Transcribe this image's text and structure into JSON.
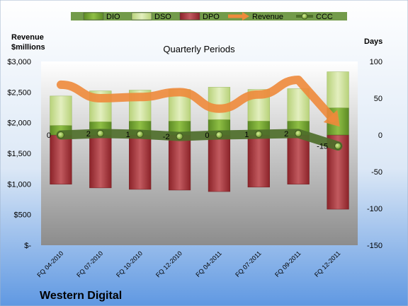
{
  "chart_data": {
    "type": "bar",
    "title": "Quarterly Periods",
    "brand": "Western Digital",
    "y_left_label_line1": "Revenue",
    "y_left_label_line2": "$millions",
    "y_right_label": "Days",
    "y_left": {
      "ylim": [
        0,
        3000
      ],
      "ticks": [
        0,
        500,
        1000,
        1500,
        2000,
        2500,
        3000
      ],
      "tick_labels": [
        "$-",
        "$500",
        "$1,000",
        "$1,500",
        "$2,000",
        "$2,500",
        "$3,000"
      ]
    },
    "y_right": {
      "ylim": [
        -150,
        100
      ],
      "ticks": [
        -150,
        -100,
        -50,
        0,
        50,
        100
      ],
      "tick_labels": [
        "-150",
        "-100",
        "-50",
        "0",
        "50",
        "100"
      ]
    },
    "categories": [
      "FQ 04-2010",
      "FQ 07-2010",
      "FQ 10-2010",
      "FQ 12-2010",
      "FQ 04-2011",
      "FQ 07-2011",
      "FQ 09-2011",
      "FQ 12-2011"
    ],
    "legend": [
      "DIO",
      "DSO",
      "DPO",
      "Revenue",
      "CCC"
    ],
    "series": [
      {
        "name": "DIO",
        "axis": "days",
        "values": [
          13,
          18,
          19,
          19,
          21,
          19,
          19,
          37
        ]
      },
      {
        "name": "DSO",
        "axis": "days",
        "values": [
          40,
          42,
          42,
          43,
          44,
          43,
          44,
          49
        ]
      },
      {
        "name": "DPO",
        "axis": "days",
        "values": [
          -67,
          -72,
          -74,
          -75,
          -77,
          -71,
          -67,
          -101
        ]
      },
      {
        "name": "Revenue",
        "axis": "revenue",
        "values": [
          2620,
          2400,
          2420,
          2500,
          2230,
          2460,
          2700,
          1970
        ]
      },
      {
        "name": "CCC",
        "axis": "days",
        "values": [
          0,
          2,
          1,
          -2,
          0,
          1,
          2,
          -15
        ],
        "labels": [
          "0",
          "2",
          "1",
          "-2",
          "0",
          "1",
          "2",
          "-15"
        ]
      }
    ],
    "colors": {
      "DIO": "#6e9f2a",
      "DSO": "#cfe29a",
      "DPO": "#a9343a",
      "Revenue": "#ee8a3b",
      "CCC": "#4e6e2a",
      "legend_band": "#5a8a2a"
    },
    "grid": false,
    "legend_position": "top"
  }
}
